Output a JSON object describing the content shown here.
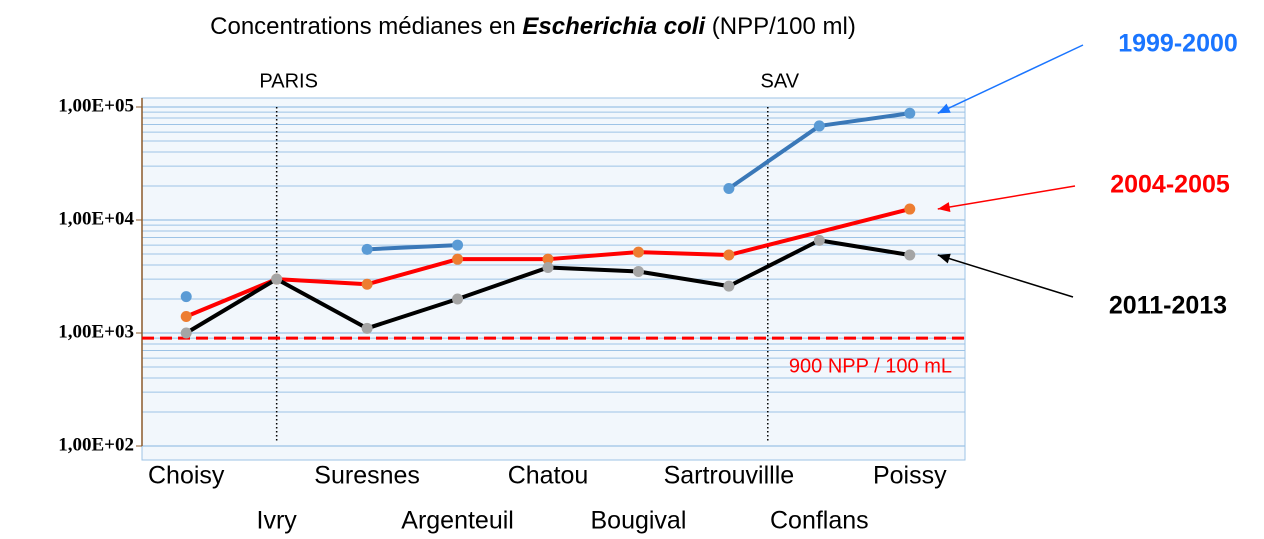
{
  "chart_data": {
    "type": "line",
    "title": "Concentrations médianes  en",
    "title_species": "Escherichia coli",
    "title_unit": "(NPP/100 ml)",
    "categories": [
      "Choisy",
      "Ivry",
      "Suresnes",
      "Argenteuil",
      "Chatou",
      "Bougival",
      "Sartrouvillle",
      "Conflans",
      "Poissy"
    ],
    "series": [
      {
        "name": "1999-2000",
        "color": "#3a78b8",
        "marker_color": "#5b9bd5",
        "values": [
          2100,
          null,
          5500,
          6000,
          null,
          null,
          19000,
          68000,
          88000
        ]
      },
      {
        "name": "2004-2005",
        "color": "#ff0000",
        "marker_color": "#ed7d31",
        "connect_gaps": true,
        "values": [
          1400,
          3000,
          2700,
          4500,
          4500,
          5200,
          4900,
          null,
          12500
        ]
      },
      {
        "name": "2011-2013",
        "color": "#000000",
        "marker_color": "#a5a5a5",
        "values": [
          1000,
          3000,
          1100,
          2000,
          3800,
          3500,
          2600,
          6600,
          4900
        ]
      }
    ],
    "ylim": [
      100,
      100000
    ],
    "yticks": [
      {
        "value": 100,
        "label": "1,00E+02"
      },
      {
        "value": 1000,
        "label": "1,00E+03"
      },
      {
        "value": 10000,
        "label": "1,00E+04"
      },
      {
        "value": 100000,
        "label": "1,00E+05"
      }
    ],
    "log_scale": true,
    "grid": true,
    "minor_grid": true,
    "threshold": {
      "value": 900,
      "label": "900 NPP / 100 mL",
      "color": "#ff0000"
    },
    "vlines": [
      {
        "label": "PARIS",
        "x": 1
      },
      {
        "label": "SAV",
        "x": 6.43
      }
    ]
  }
}
